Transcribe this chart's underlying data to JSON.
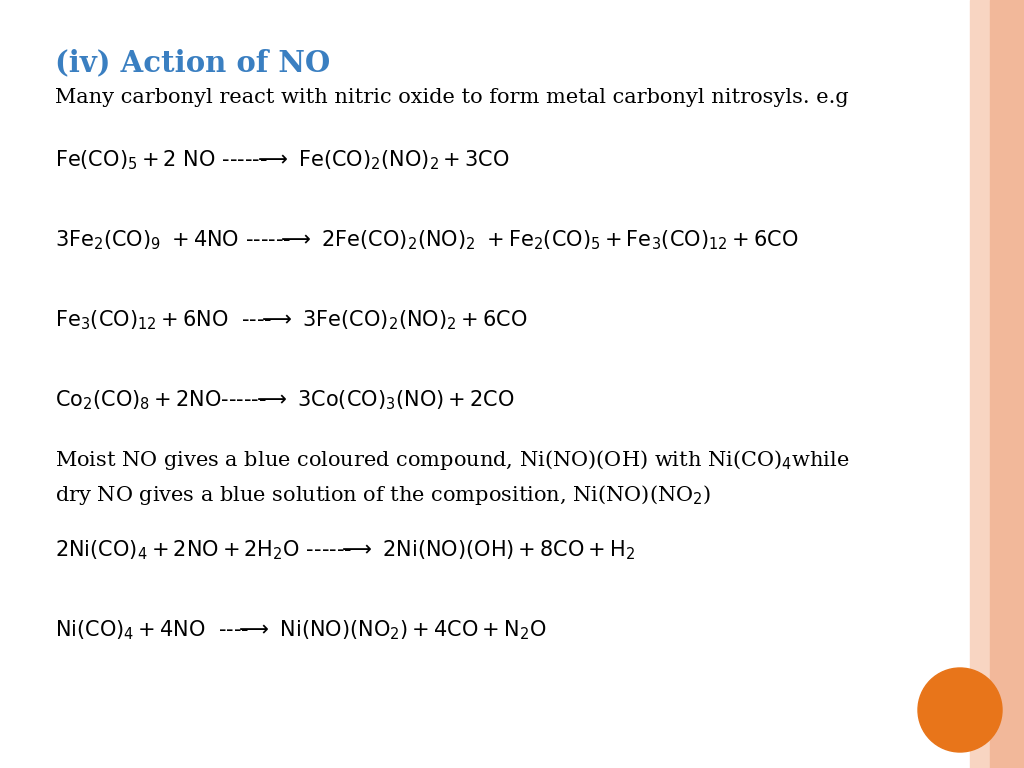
{
  "title": "(iv) Action of NO",
  "title_color": "#3A7FC1",
  "title_fontsize": 21,
  "bg_color": "#FFFFFF",
  "border_color": "#F2B89A",
  "text_color": "#000000",
  "body_fontsize": 15,
  "subtitle": "Many carbonyl react with nitric oxide to form metal carbonyl nitrosyls. e.g",
  "orange_circle_color": "#E8751A",
  "eq_fontsize": 15
}
